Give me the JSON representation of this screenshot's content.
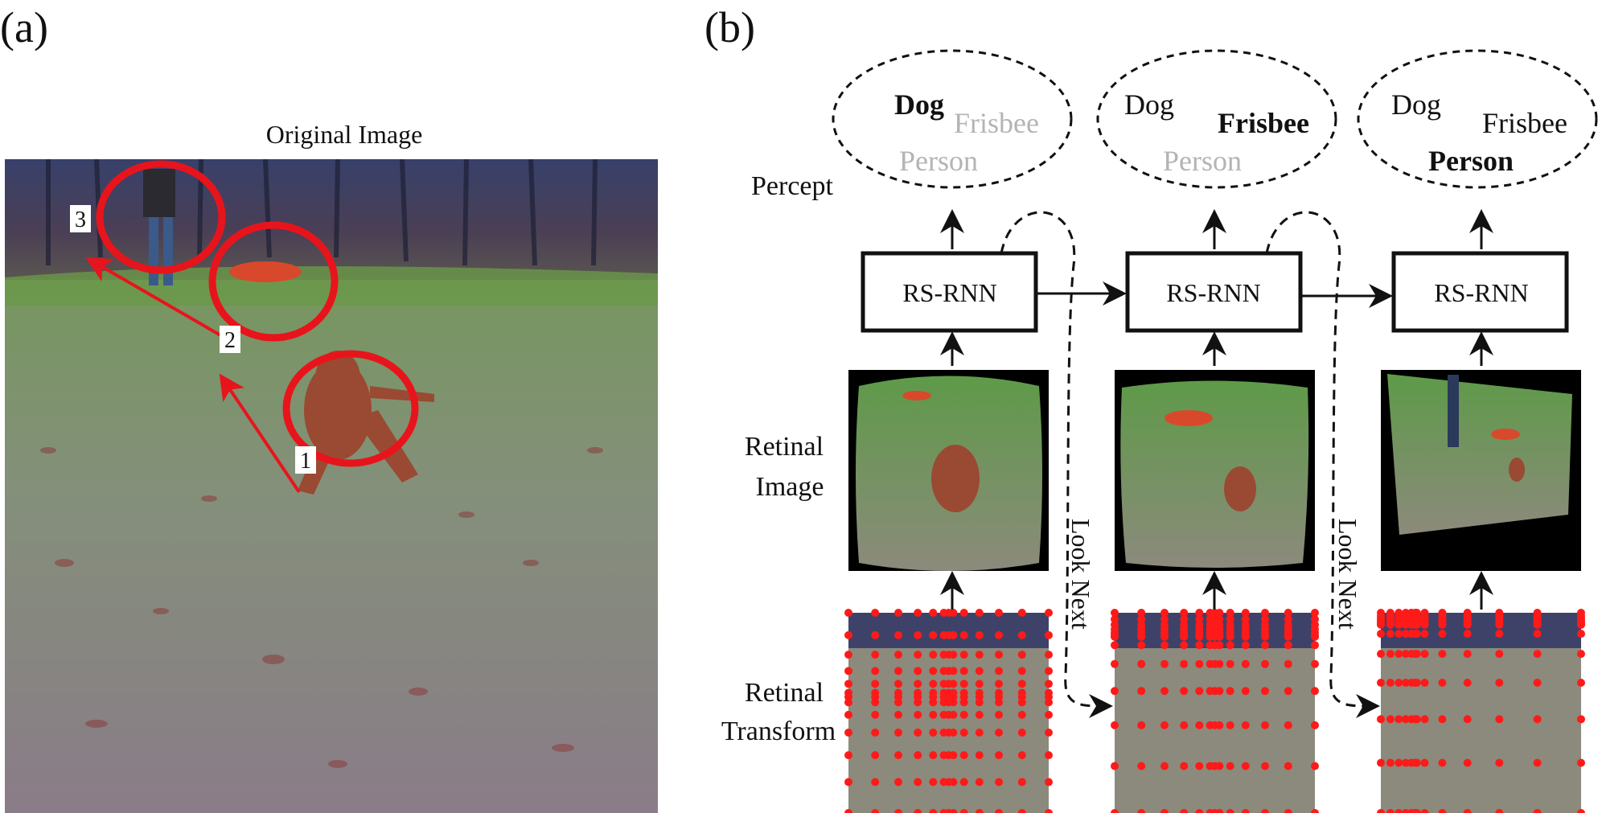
{
  "panel_a": {
    "label": "(a)",
    "title": "Original Image",
    "steps": [
      "1",
      "2",
      "3"
    ],
    "colors": {
      "circle": "#e8141c",
      "arrow": "#e8141c"
    }
  },
  "panel_b": {
    "label": "(b)",
    "row_labels": {
      "percept": "Percept",
      "retinal_image": [
        "Retinal",
        "Image"
      ],
      "retinal_transform": [
        "Retinal",
        "Transform"
      ]
    },
    "columns": [
      {
        "percept": {
          "dog": "Dog",
          "frisbee": "Frisbee",
          "person": "Person",
          "active": "dog"
        },
        "rnn": "RS-RNN"
      },
      {
        "percept": {
          "dog": "Dog",
          "frisbee": "Frisbee",
          "person": "Person",
          "active": "frisbee"
        },
        "rnn": "RS-RNN"
      },
      {
        "percept": {
          "dog": "Dog",
          "frisbee": "Frisbee",
          "person": "Person",
          "active": "person"
        },
        "rnn": "RS-RNN"
      }
    ],
    "look_next": "Look Next",
    "colors": {
      "inactive_text": "#b4b4b4",
      "active_text": "#111111",
      "dot": "#ff1a1a"
    }
  }
}
